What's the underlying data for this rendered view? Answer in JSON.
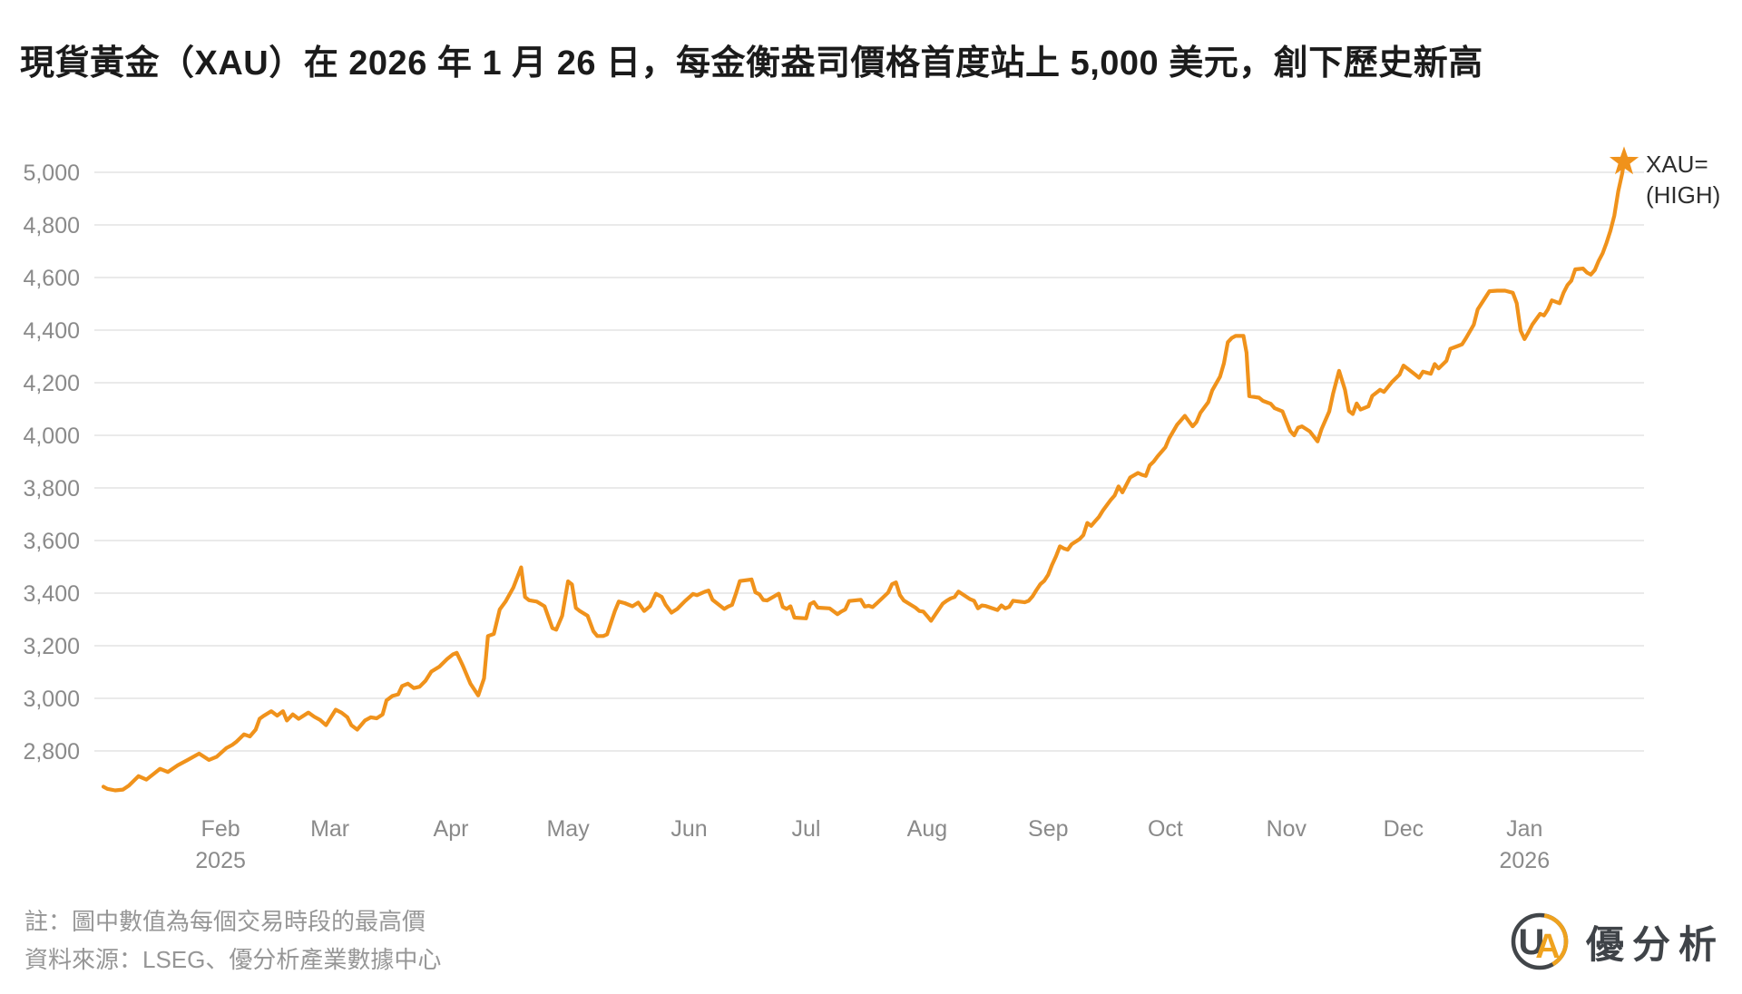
{
  "title": "現貨黃金（XAU）在 2026 年 1 月 26 日，每金衡盎司價格首度站上 5,000 美元，創下歷史新高",
  "annotation": {
    "line1": "XAU=",
    "line2": "(HIGH)"
  },
  "notes": {
    "note1": "註：圖中數值為每個交易時段的最高價",
    "note2": "資料來源：LSEG、優分析產業數據中心"
  },
  "logo": {
    "letter_u": "U",
    "letter_a": "A",
    "brand": "優分析"
  },
  "colors": {
    "line": "#F0921B",
    "star": "#F0921B",
    "grid": "#E4E4E4",
    "axis_text": "#8A8A8A",
    "title_text": "#1B1B1B",
    "annotation_text": "#2E2E2E",
    "note_text": "#969696",
    "logo_dark": "#42464A",
    "logo_orange": "#EFA21E",
    "background": "#FFFFFF"
  },
  "chart_data": {
    "type": "line",
    "title": "現貨黃金（XAU）每金衡盎司美元價格（每個交易時段最高價）",
    "series_name": "XAU= (HIGH)",
    "x_unit": "days since 2025-01-02",
    "x_range_dates": [
      "2025-01-02",
      "2026-01-26"
    ],
    "ylim": [
      2620,
      5070
    ],
    "grid": true,
    "legend_position": "end-of-line annotation",
    "final_point": {
      "date": "2026-01-26",
      "value": 5040
    },
    "y_ticks": [
      2800,
      3000,
      3200,
      3400,
      3600,
      3800,
      4000,
      4200,
      4400,
      4600,
      4800,
      5000
    ],
    "x_ticks": [
      {
        "day": 30,
        "label": "Feb",
        "year": "2025"
      },
      {
        "day": 58,
        "label": "Mar"
      },
      {
        "day": 89,
        "label": "Apr"
      },
      {
        "day": 119,
        "label": "May"
      },
      {
        "day": 150,
        "label": "Jun"
      },
      {
        "day": 180,
        "label": "Jul"
      },
      {
        "day": 211,
        "label": "Aug"
      },
      {
        "day": 242,
        "label": "Sep"
      },
      {
        "day": 272,
        "label": "Oct"
      },
      {
        "day": 303,
        "label": "Nov"
      },
      {
        "day": 333,
        "label": "Dec"
      },
      {
        "day": 364,
        "label": "Jan",
        "year": "2026"
      }
    ],
    "points": [
      [
        0,
        2664
      ],
      [
        1,
        2656
      ],
      [
        3,
        2650
      ],
      [
        5,
        2653
      ],
      [
        6.5,
        2668
      ],
      [
        9,
        2704
      ],
      [
        11,
        2691
      ],
      [
        13,
        2714
      ],
      [
        14.5,
        2732
      ],
      [
        16.5,
        2720
      ],
      [
        19,
        2745
      ],
      [
        21.5,
        2765
      ],
      [
        24.5,
        2790
      ],
      [
        27,
        2766
      ],
      [
        29,
        2778
      ],
      [
        31.5,
        2811
      ],
      [
        33,
        2823
      ],
      [
        34,
        2834
      ],
      [
        36,
        2863
      ],
      [
        37.5,
        2855
      ],
      [
        39,
        2881
      ],
      [
        40,
        2922
      ],
      [
        41,
        2933
      ],
      [
        43,
        2951
      ],
      [
        44.5,
        2934
      ],
      [
        46,
        2951
      ],
      [
        47,
        2916
      ],
      [
        48.5,
        2939
      ],
      [
        50,
        2922
      ],
      [
        52.5,
        2946
      ],
      [
        54,
        2930
      ],
      [
        55.5,
        2918
      ],
      [
        57,
        2898
      ],
      [
        59.5,
        2957
      ],
      [
        61,
        2945
      ],
      [
        62.5,
        2928
      ],
      [
        63.5,
        2898
      ],
      [
        65,
        2881
      ],
      [
        67,
        2916
      ],
      [
        68.5,
        2928
      ],
      [
        70,
        2924
      ],
      [
        71.5,
        2939
      ],
      [
        72.5,
        2992
      ],
      [
        74,
        3009
      ],
      [
        75.5,
        3015
      ],
      [
        76.5,
        3047
      ],
      [
        78,
        3056
      ],
      [
        79.5,
        3039
      ],
      [
        81,
        3044
      ],
      [
        82.5,
        3067
      ],
      [
        84,
        3102
      ],
      [
        86,
        3120
      ],
      [
        88,
        3149
      ],
      [
        89.5,
        3167
      ],
      [
        90.5,
        3173
      ],
      [
        92,
        3126
      ],
      [
        94,
        3056
      ],
      [
        96,
        3011
      ],
      [
        97.5,
        3076
      ],
      [
        98.5,
        3237
      ],
      [
        100,
        3245
      ],
      [
        101.5,
        3338
      ],
      [
        103,
        3368
      ],
      [
        105,
        3421
      ],
      [
        107,
        3498
      ],
      [
        108,
        3385
      ],
      [
        109,
        3373
      ],
      [
        111,
        3368
      ],
      [
        113,
        3350
      ],
      [
        115,
        3267
      ],
      [
        116,
        3261
      ],
      [
        117.5,
        3314
      ],
      [
        119,
        3445
      ],
      [
        120,
        3433
      ],
      [
        121,
        3344
      ],
      [
        122,
        3332
      ],
      [
        124,
        3314
      ],
      [
        125.5,
        3255
      ],
      [
        126.5,
        3237
      ],
      [
        128,
        3237
      ],
      [
        129,
        3243
      ],
      [
        131,
        3332
      ],
      [
        132,
        3368
      ],
      [
        133.5,
        3362
      ],
      [
        135.5,
        3350
      ],
      [
        137,
        3364
      ],
      [
        138.5,
        3332
      ],
      [
        140,
        3350
      ],
      [
        141.5,
        3398
      ],
      [
        143,
        3386
      ],
      [
        144,
        3356
      ],
      [
        145.5,
        3326
      ],
      [
        147,
        3340
      ],
      [
        148,
        3355
      ],
      [
        149,
        3370
      ],
      [
        151,
        3397
      ],
      [
        152,
        3392
      ],
      [
        154,
        3405
      ],
      [
        155,
        3410
      ],
      [
        156,
        3375
      ],
      [
        159,
        3340
      ],
      [
        160,
        3349
      ],
      [
        161,
        3355
      ],
      [
        162,
        3398
      ],
      [
        163,
        3446
      ],
      [
        166,
        3452
      ],
      [
        167,
        3403
      ],
      [
        168,
        3396
      ],
      [
        169,
        3374
      ],
      [
        170,
        3372
      ],
      [
        173,
        3398
      ],
      [
        174,
        3348
      ],
      [
        175,
        3340
      ],
      [
        176,
        3350
      ],
      [
        177,
        3307
      ],
      [
        180,
        3304
      ],
      [
        181,
        3358
      ],
      [
        182,
        3366
      ],
      [
        183,
        3345
      ],
      [
        186,
        3342
      ],
      [
        188,
        3320
      ],
      [
        189,
        3330
      ],
      [
        190,
        3338
      ],
      [
        191,
        3370
      ],
      [
        194,
        3375
      ],
      [
        195,
        3349
      ],
      [
        196,
        3352
      ],
      [
        197,
        3347
      ],
      [
        198,
        3360
      ],
      [
        201,
        3402
      ],
      [
        202,
        3434
      ],
      [
        203,
        3441
      ],
      [
        204,
        3393
      ],
      [
        205,
        3372
      ],
      [
        208,
        3345
      ],
      [
        209,
        3332
      ],
      [
        210,
        3330
      ],
      [
        211,
        3313
      ],
      [
        212,
        3295
      ],
      [
        215,
        3360
      ],
      [
        216,
        3371
      ],
      [
        217,
        3380
      ],
      [
        218,
        3385
      ],
      [
        219,
        3406
      ],
      [
        222,
        3377
      ],
      [
        223,
        3371
      ],
      [
        224,
        3342
      ],
      [
        225,
        3353
      ],
      [
        226,
        3351
      ],
      [
        229,
        3336
      ],
      [
        230,
        3353
      ],
      [
        231,
        3342
      ],
      [
        232,
        3348
      ],
      [
        233,
        3371
      ],
      [
        236,
        3365
      ],
      [
        237,
        3371
      ],
      [
        238,
        3388
      ],
      [
        239,
        3412
      ],
      [
        240,
        3434
      ],
      [
        241,
        3447
      ],
      [
        242,
        3470
      ],
      [
        243,
        3508
      ],
      [
        244,
        3540
      ],
      [
        245,
        3578
      ],
      [
        246,
        3570
      ],
      [
        247,
        3565
      ],
      [
        248,
        3586
      ],
      [
        250,
        3605
      ],
      [
        251,
        3621
      ],
      [
        252,
        3667
      ],
      [
        253,
        3656
      ],
      [
        254,
        3673
      ],
      [
        255,
        3690
      ],
      [
        256,
        3714
      ],
      [
        258,
        3754
      ],
      [
        259,
        3771
      ],
      [
        260,
        3806
      ],
      [
        261,
        3783
      ],
      [
        263,
        3840
      ],
      [
        265,
        3857
      ],
      [
        266,
        3850
      ],
      [
        267,
        3846
      ],
      [
        268,
        3886
      ],
      [
        269,
        3900
      ],
      [
        270,
        3920
      ],
      [
        272,
        3954
      ],
      [
        273,
        3989
      ],
      [
        275,
        4040
      ],
      [
        276,
        4057
      ],
      [
        277,
        4074
      ],
      [
        279,
        4034
      ],
      [
        280,
        4051
      ],
      [
        281,
        4086
      ],
      [
        283,
        4126
      ],
      [
        284,
        4171
      ],
      [
        286,
        4223
      ],
      [
        287,
        4274
      ],
      [
        288,
        4354
      ],
      [
        289,
        4370
      ],
      [
        290,
        4378
      ],
      [
        292,
        4378
      ],
      [
        292.8,
        4314
      ],
      [
        293.5,
        4149
      ],
      [
        296,
        4143
      ],
      [
        297,
        4131
      ],
      [
        299,
        4120
      ],
      [
        300,
        4103
      ],
      [
        302,
        4091
      ],
      [
        304,
        4017
      ],
      [
        305,
        4000
      ],
      [
        306,
        4029
      ],
      [
        307,
        4034
      ],
      [
        309,
        4015
      ],
      [
        311,
        3977
      ],
      [
        312,
        4023
      ],
      [
        314,
        4091
      ],
      [
        315,
        4160
      ],
      [
        316.5,
        4245
      ],
      [
        318,
        4173
      ],
      [
        319,
        4093
      ],
      [
        320,
        4081
      ],
      [
        321,
        4121
      ],
      [
        322,
        4098
      ],
      [
        324,
        4110
      ],
      [
        325,
        4150
      ],
      [
        327,
        4173
      ],
      [
        328,
        4165
      ],
      [
        330,
        4202
      ],
      [
        332,
        4231
      ],
      [
        333,
        4265
      ],
      [
        334,
        4254
      ],
      [
        336,
        4231
      ],
      [
        337,
        4219
      ],
      [
        338,
        4242
      ],
      [
        340,
        4234
      ],
      [
        341,
        4271
      ],
      [
        342,
        4254
      ],
      [
        344,
        4283
      ],
      [
        345,
        4329
      ],
      [
        347,
        4340
      ],
      [
        348,
        4346
      ],
      [
        349,
        4369
      ],
      [
        351,
        4421
      ],
      [
        352,
        4479
      ],
      [
        354,
        4525
      ],
      [
        355,
        4548
      ],
      [
        357,
        4550
      ],
      [
        359,
        4550
      ],
      [
        361,
        4542
      ],
      [
        362,
        4502
      ],
      [
        363,
        4398
      ],
      [
        364,
        4366
      ],
      [
        365,
        4392
      ],
      [
        366,
        4421
      ],
      [
        368,
        4462
      ],
      [
        369,
        4456
      ],
      [
        370,
        4479
      ],
      [
        371,
        4513
      ],
      [
        373,
        4502
      ],
      [
        374,
        4542
      ],
      [
        375,
        4571
      ],
      [
        376,
        4588
      ],
      [
        377,
        4631
      ],
      [
        379,
        4634
      ],
      [
        380,
        4619
      ],
      [
        381,
        4611
      ],
      [
        382,
        4628
      ],
      [
        383,
        4663
      ],
      [
        384,
        4692
      ],
      [
        385,
        4732
      ],
      [
        386,
        4778
      ],
      [
        387,
        4836
      ],
      [
        388,
        4928
      ],
      [
        389,
        4995
      ],
      [
        389.5,
        5040
      ]
    ]
  }
}
